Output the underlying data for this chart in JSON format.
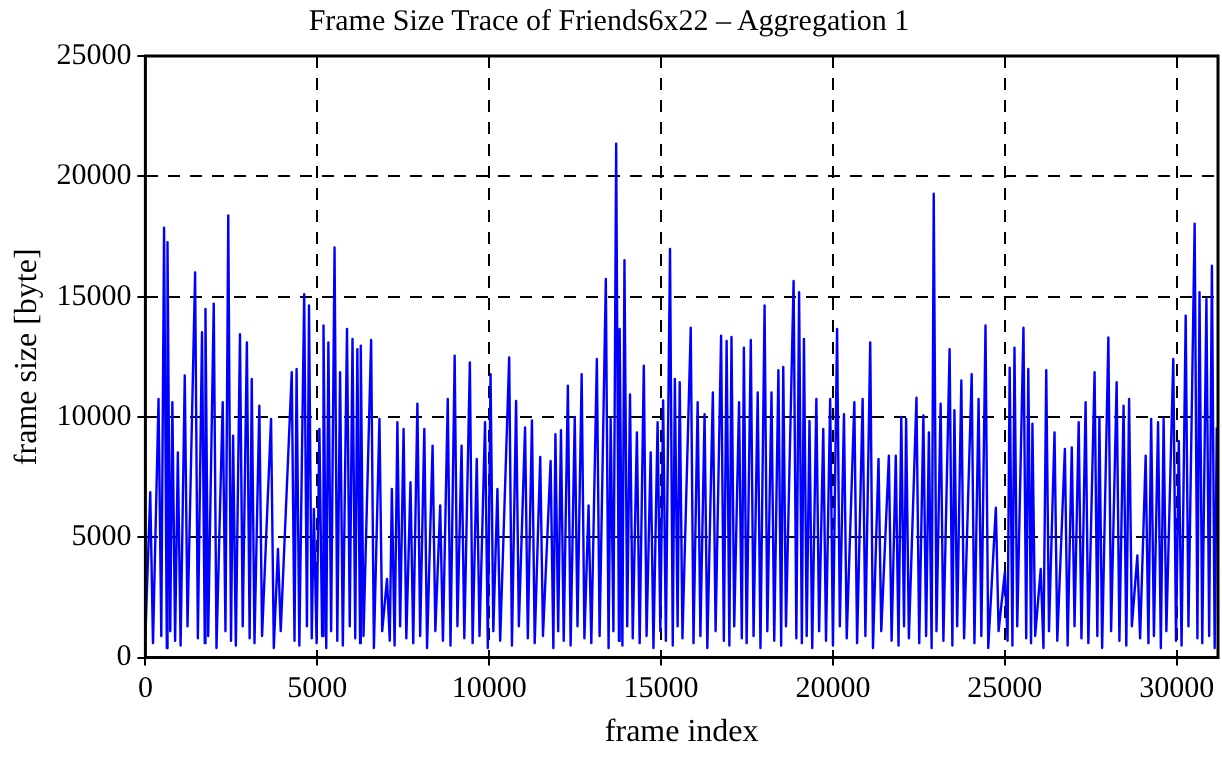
{
  "chart_data": {
    "type": "line",
    "title": "Frame Size Trace of Friends6x22 – Aggregation 1",
    "xlabel": "frame index",
    "ylabel": "frame size [byte]",
    "xlim": [
      0,
      31200
    ],
    "xticks": [
      0,
      5000,
      10000,
      15000,
      20000,
      25000,
      30000
    ],
    "ylim": [
      0,
      25000
    ],
    "yticks": [
      0,
      5000,
      10000,
      15000,
      20000,
      25000
    ],
    "grid": true,
    "series": [
      {
        "color": "#0000ff",
        "x": [
          0,
          141,
          221,
          382,
          462,
          543,
          623,
          643,
          723,
          784,
          864,
          944,
          1024,
          1145,
          1225,
          1446,
          1526,
          1647,
          1727,
          1747,
          1827,
          1988,
          2068,
          2249,
          2329,
          2410,
          2490,
          2551,
          2631,
          2751,
          2831,
          2952,
          3032,
          3093,
          3173,
          3314,
          3394,
          3655,
          3735,
          3856,
          3936,
          4257,
          4337,
          4398,
          4478,
          4619,
          4699,
          4759,
          4839,
          4900,
          4980,
          5061,
          5141,
          5181,
          5261,
          5322,
          5402,
          5502,
          5582,
          5663,
          5743,
          5864,
          5944,
          6024,
          6104,
          6165,
          6245,
          6265,
          6345,
          6566,
          6646,
          6808,
          6888,
          7028,
          7108,
          7169,
          7249,
          7330,
          7410,
          7510,
          7590,
          7711,
          7791,
          7912,
          7992,
          8113,
          8193,
          8354,
          8434,
          8575,
          8655,
          8795,
          8875,
          8996,
          9076,
          9197,
          9277,
          9438,
          9518,
          9639,
          9719,
          9880,
          9960,
          10040,
          10120,
          10240,
          10320,
          10582,
          10662,
          10783,
          10863,
          11044,
          11124,
          11244,
          11324,
          11485,
          11565,
          11787,
          11867,
          11927,
          12007,
          12088,
          12168,
          12289,
          12369,
          12489,
          12569,
          12690,
          12770,
          12891,
          12971,
          13132,
          13212,
          13393,
          13473,
          13534,
          13614,
          13694,
          13774,
          13795,
          13875,
          13935,
          14015,
          14096,
          14176,
          14297,
          14377,
          14498,
          14578,
          14698,
          14778,
          14899,
          14979,
          15060,
          15140,
          15260,
          15340,
          15401,
          15481,
          15542,
          15622,
          15863,
          15943,
          16064,
          16144,
          16265,
          16345,
          16506,
          16586,
          16746,
          16826,
          16907,
          16987,
          17048,
          17128,
          17268,
          17348,
          17409,
          17489,
          17610,
          17690,
          17811,
          17891,
          18011,
          18091,
          18212,
          18292,
          18413,
          18493,
          18554,
          18634,
          18855,
          18935,
          19015,
          19095,
          19156,
          19236,
          19317,
          19397,
          19517,
          19597,
          19718,
          19798,
          19919,
          19999,
          20120,
          20200,
          20320,
          20400,
          20622,
          20702,
          20863,
          20943,
          21084,
          21164,
          21325,
          21405,
          21626,
          21706,
          21827,
          21907,
          21987,
          22067,
          22128,
          22208,
          22429,
          22509,
          22630,
          22710,
          22790,
          22870,
          22931,
          23011,
          23132,
          23212,
          23393,
          23473,
          23533,
          23613,
          23734,
          23814,
          24035,
          24115,
          24236,
          24316,
          24437,
          24517,
          24738,
          24818,
          24999,
          25079,
          25140,
          25220,
          25280,
          25360,
          25541,
          25621,
          25682,
          25762,
          25802,
          25882,
          26043,
          26123,
          26204,
          26284,
          26445,
          26525,
          26746,
          26826,
          26947,
          27027,
          27148,
          27228,
          27349,
          27429,
          27610,
          27690,
          27750,
          27830,
          28011,
          28091,
          28252,
          28332,
          28453,
          28533,
          28614,
          28694,
          28854,
          28934,
          29096,
          29176,
          29256,
          29336,
          29457,
          29537,
          29618,
          29698,
          29899,
          29979,
          30060,
          30140,
          30260,
          30340,
          30521,
          30601,
          30662,
          30742,
          30863,
          30943,
          31023,
          31103,
          31164
        ],
        "values": [
          900,
          6870,
          600,
          10750,
          900,
          17870,
          400,
          17260,
          1100,
          10610,
          700,
          8530,
          500,
          11720,
          1300,
          16010,
          800,
          13520,
          600,
          14490,
          900,
          14710,
          400,
          10610,
          1100,
          18370,
          700,
          9220,
          500,
          13440,
          1300,
          13100,
          800,
          11580,
          600,
          10470,
          900,
          9920,
          400,
          4510,
          1100,
          11860,
          700,
          11990,
          500,
          15100,
          1300,
          14630,
          800,
          6180,
          600,
          9500,
          900,
          13800,
          400,
          13100,
          1100,
          17040,
          700,
          11860,
          500,
          13660,
          1300,
          13240,
          800,
          12820,
          600,
          12960,
          900,
          13200,
          400,
          9920,
          1100,
          3270,
          700,
          7010,
          500,
          9780,
          1300,
          9500,
          800,
          7290,
          600,
          10550,
          900,
          9500,
          400,
          8810,
          1100,
          6320,
          700,
          10750,
          500,
          12550,
          1300,
          8810,
          800,
          12270,
          600,
          8260,
          900,
          9780,
          400,
          11780,
          1100,
          7010,
          700,
          12470,
          500,
          10670,
          1300,
          9560,
          800,
          9860,
          600,
          8340,
          900,
          8170,
          400,
          9280,
          1100,
          9450,
          700,
          11300,
          500,
          10000,
          1300,
          11780,
          800,
          6320,
          600,
          12410,
          900,
          15730,
          400,
          9920,
          1100,
          21360,
          700,
          13660,
          500,
          16510,
          1300,
          10940,
          800,
          9360,
          600,
          12130,
          900,
          8530,
          400,
          9780,
          1100,
          10690,
          700,
          16980,
          500,
          11580,
          1300,
          11440,
          800,
          13710,
          600,
          10610,
          900,
          10110,
          400,
          11020,
          1100,
          13380,
          700,
          13160,
          500,
          13320,
          1300,
          10610,
          800,
          12880,
          600,
          13200,
          900,
          11020,
          400,
          14630,
          1100,
          11020,
          700,
          11940,
          500,
          12080,
          1300,
          15650,
          800,
          15180,
          600,
          13240,
          900,
          9830,
          400,
          10750,
          1100,
          9500,
          700,
          10750,
          500,
          13660,
          1300,
          10110,
          800,
          10610,
          600,
          10750,
          900,
          13100,
          400,
          8260,
          1100,
          8390,
          700,
          8390,
          500,
          10000,
          1300,
          9920,
          800,
          10800,
          600,
          10060,
          900,
          9360,
          400,
          19280,
          1100,
          10550,
          700,
          12820,
          500,
          10280,
          1300,
          11520,
          800,
          11780,
          600,
          10750,
          900,
          13800,
          400,
          6230,
          1100,
          3540,
          700,
          12050,
          500,
          12880,
          1300,
          13710,
          800,
          11990,
          600,
          9720,
          900,
          3680,
          400,
          11940,
          1100,
          9360,
          700,
          8670,
          500,
          8730,
          1300,
          9780,
          800,
          10610,
          600,
          11860,
          900,
          10000,
          400,
          13300,
          1100,
          11440,
          700,
          10470,
          500,
          10750,
          1300,
          4240,
          800,
          8390,
          600,
          9920,
          900,
          9780,
          400,
          9920,
          1100,
          12410,
          700,
          9000,
          500,
          14210,
          1300,
          18030,
          800,
          15180,
          600,
          14900,
          900,
          16290,
          400,
          9560
        ]
      }
    ]
  }
}
